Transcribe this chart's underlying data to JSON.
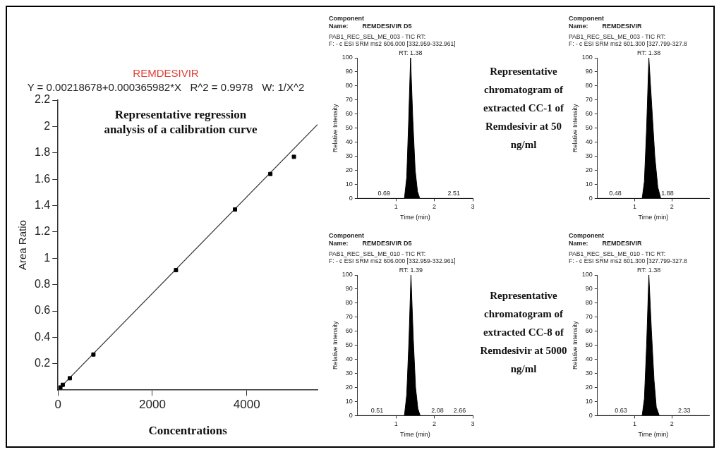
{
  "chart_data": [
    {
      "type": "scatter",
      "title": "REMDESIVIR",
      "subtitle": "Y = 0.00218678+0.000365982*X   R^2 = 0.9978   W: 1/X^2",
      "xlabel": "Concentrations",
      "ylabel": "Area Ratio",
      "annotations": [
        "Representative regression analysis of a calibration curve"
      ],
      "xlim": [
        0,
        5500
      ],
      "xticks": [
        0,
        2000,
        4000
      ],
      "ylim": [
        0,
        2.2
      ],
      "yticks": [
        0.2,
        0.4,
        0.6,
        0.8,
        1.0,
        1.2,
        1.4,
        1.6,
        1.8,
        2.0,
        2.2
      ],
      "grid": false,
      "legend": false,
      "series": [
        {
          "type": "scatter",
          "color": "#000000",
          "marker": "square",
          "x": [
            50,
            100,
            250,
            750,
            2500,
            3750,
            4500,
            5000
          ],
          "values": [
            0.02,
            0.04,
            0.09,
            0.27,
            0.91,
            1.37,
            1.64,
            1.77
          ]
        },
        {
          "type": "line",
          "color": "#333333",
          "marker": "none",
          "x": [
            0,
            5500
          ],
          "values": [
            0.002,
            2.015
          ]
        }
      ]
    },
    {
      "type": "area",
      "title": "Component\nName:        REMDESIVIR D5",
      "subtitle": "PAB1_REC_SEL_ME_003 - TIC RT:\nF: - c ESI SRM ms2 606.000 [332.959-332.961]",
      "xlabel": "Time (min)",
      "ylabel": "Relative Intensity",
      "xlim": [
        0,
        3
      ],
      "xticks": [
        1,
        2,
        3
      ],
      "ylim": [
        0,
        100
      ],
      "yticks": [
        0,
        10,
        20,
        30,
        40,
        50,
        60,
        70,
        80,
        90,
        100
      ],
      "grid": false,
      "legend": false,
      "annotations": [
        {
          "text": "RT: 1.38",
          "x": 1.38,
          "y": 100
        },
        {
          "text": "0.69",
          "x": 0.69,
          "y": 0
        },
        {
          "text": "2.51",
          "x": 2.51,
          "y": 0
        },
        "Representative chromatogram of extracted CC-1 of Remdesivir at 50 ng/ml"
      ],
      "series": [
        {
          "color": "#000000",
          "x": [
            0,
            1.22,
            1.28,
            1.33,
            1.38,
            1.44,
            1.5,
            1.56,
            1.62,
            3
          ],
          "values": [
            0,
            0,
            15,
            55,
            100,
            55,
            20,
            5,
            0,
            0
          ]
        }
      ]
    },
    {
      "type": "area",
      "title": "Component\nName:        REMDESIVIR",
      "subtitle": "PAB1_REC_SEL_ME_003 - TIC RT:\nF: - c ESI SRM ms2 601.300 [327.799-327.8",
      "xlabel": "Time (min)",
      "ylabel": "Relative Intensity",
      "xlim": [
        0,
        3
      ],
      "xticks": [
        1,
        2
      ],
      "ylim": [
        0,
        100
      ],
      "yticks": [
        0,
        10,
        20,
        30,
        40,
        50,
        60,
        70,
        80,
        90,
        100
      ],
      "grid": false,
      "legend": false,
      "annotations": [
        {
          "text": "RT: 1.38",
          "x": 1.38,
          "y": 100
        },
        {
          "text": "0.48",
          "x": 0.48,
          "y": 0
        },
        {
          "text": "1.88",
          "x": 1.88,
          "y": 0
        }
      ],
      "series": [
        {
          "color": "#000000",
          "x": [
            0,
            1.2,
            1.26,
            1.32,
            1.38,
            1.46,
            1.54,
            1.62,
            1.7,
            3
          ],
          "values": [
            0,
            0,
            12,
            50,
            100,
            65,
            30,
            8,
            0,
            0
          ]
        }
      ]
    },
    {
      "type": "area",
      "title": "Component\nName:        REMDESIVIR D5",
      "subtitle": "PAB1_REC_SEL_ME_010 - TIC RT:\nF: - c ESI SRM ms2 606.000 [332.959-332.961]",
      "xlabel": "Time (min)",
      "ylabel": "Relative Intensity",
      "xlim": [
        0,
        3
      ],
      "xticks": [
        1,
        2,
        3
      ],
      "ylim": [
        0,
        100
      ],
      "yticks": [
        0,
        10,
        20,
        30,
        40,
        50,
        60,
        70,
        80,
        90,
        100
      ],
      "grid": false,
      "legend": false,
      "annotations": [
        {
          "text": "RT: 1.39",
          "x": 1.39,
          "y": 100
        },
        {
          "text": "0.51",
          "x": 0.51,
          "y": 0
        },
        {
          "text": "2.08",
          "x": 2.08,
          "y": 0
        },
        {
          "text": "2.66",
          "x": 2.66,
          "y": 0
        },
        "Representative chromatogram of extracted CC-8 of Remdesivir at 5000 ng/ml"
      ],
      "series": [
        {
          "color": "#000000",
          "x": [
            0,
            1.22,
            1.28,
            1.34,
            1.39,
            1.45,
            1.51,
            1.57,
            1.63,
            3
          ],
          "values": [
            0,
            0,
            15,
            55,
            100,
            55,
            20,
            5,
            0,
            0
          ]
        }
      ]
    },
    {
      "type": "area",
      "title": "Component\nName:        REMDESIVIR",
      "subtitle": "PAB1_REC_SEL_ME_010 - TIC RT:\nF: - c ESI SRM ms2 601.300 [327.799-327.8",
      "xlabel": "Time (min)",
      "ylabel": "Relative Intensity",
      "xlim": [
        0,
        3
      ],
      "xticks": [
        1,
        2
      ],
      "ylim": [
        0,
        100
      ],
      "yticks": [
        0,
        10,
        20,
        30,
        40,
        50,
        60,
        70,
        80,
        90,
        100
      ],
      "grid": false,
      "legend": false,
      "annotations": [
        {
          "text": "RT: 1.38",
          "x": 1.38,
          "y": 100
        },
        {
          "text": "0.63",
          "x": 0.63,
          "y": 0
        },
        {
          "text": "2.33",
          "x": 2.33,
          "y": 0
        }
      ],
      "series": [
        {
          "color": "#000000",
          "x": [
            0,
            1.2,
            1.26,
            1.32,
            1.38,
            1.45,
            1.52,
            1.58,
            1.66,
            3
          ],
          "values": [
            0,
            0,
            12,
            50,
            100,
            60,
            25,
            6,
            0,
            0
          ]
        }
      ]
    }
  ]
}
